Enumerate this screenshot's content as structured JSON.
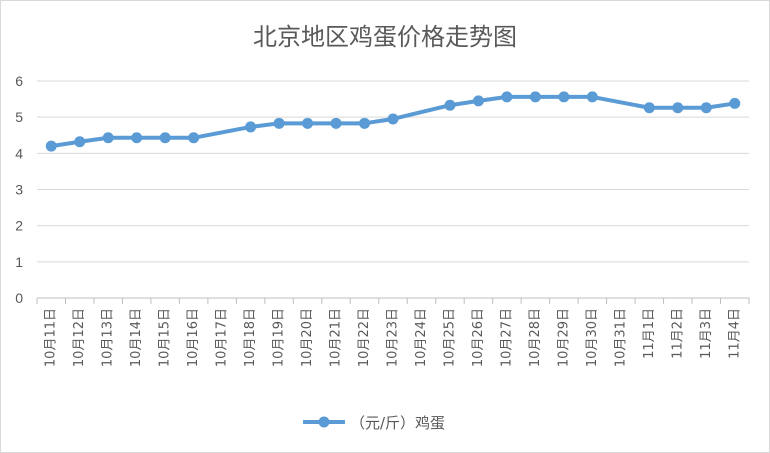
{
  "chart_data": {
    "type": "line",
    "title": "北京地区鸡蛋价格走势图",
    "xlabel": "",
    "ylabel": "",
    "ylim": [
      0,
      6
    ],
    "yticks": [
      0,
      1,
      2,
      3,
      4,
      5,
      6
    ],
    "grid": true,
    "legend_position": "bottom",
    "categories": [
      "10月11日",
      "10月12日",
      "10月13日",
      "10月14日",
      "10月15日",
      "10月16日",
      "10月17日",
      "10月18日",
      "10月19日",
      "10月20日",
      "10月21日",
      "10月22日",
      "10月23日",
      "10月24日",
      "10月25日",
      "10月26日",
      "10月27日",
      "10月28日",
      "10月29日",
      "10月30日",
      "10月31日",
      "11月1日",
      "11月2日",
      "11月3日",
      "11月4日"
    ],
    "series": [
      {
        "name": "（元/斤）鸡蛋",
        "color": "#5b9bd5",
        "values": [
          4.2,
          4.32,
          4.43,
          4.43,
          4.43,
          4.43,
          null,
          4.73,
          4.83,
          4.83,
          4.83,
          4.83,
          4.95,
          null,
          5.33,
          5.45,
          5.56,
          5.56,
          5.56,
          5.56,
          null,
          5.26,
          5.26,
          5.26,
          5.38
        ],
        "connect_gaps": true
      }
    ]
  }
}
